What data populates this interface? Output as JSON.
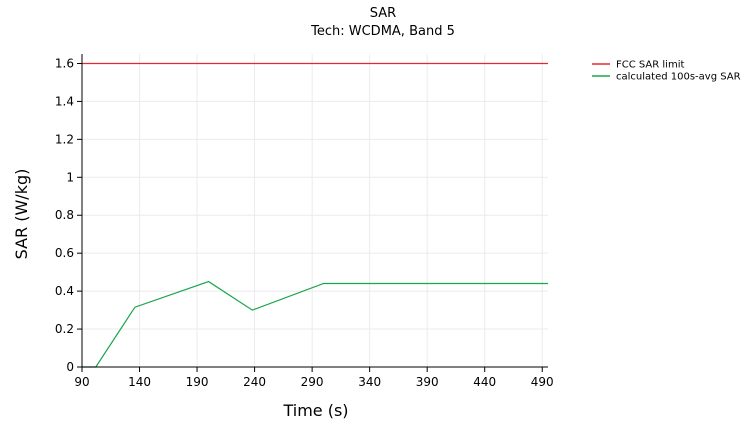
{
  "chart_data": {
    "type": "line",
    "title": "SAR",
    "subtitle": "Tech: WCDMA, Band 5",
    "xlabel": "Time (s)",
    "ylabel": "SAR (W/kg)",
    "xlim": [
      90,
      495
    ],
    "ylim": [
      0,
      1.65
    ],
    "x_ticks": [
      90,
      140,
      190,
      240,
      290,
      340,
      390,
      440,
      490
    ],
    "x_tick_labels": [
      "90",
      "140",
      "190",
      "240",
      "290",
      "340",
      "390",
      "440",
      "490"
    ],
    "y_ticks": [
      0,
      0.2,
      0.4,
      0.6,
      0.8,
      1,
      1.2,
      1.4,
      1.6
    ],
    "y_tick_labels": [
      "0",
      "0.2",
      "0.4",
      "0.6",
      "0.8",
      "1",
      "1.2",
      "1.4",
      "1.6"
    ],
    "grid": true,
    "legend_position": "top-right",
    "series": [
      {
        "name": "FCC SAR limit",
        "color": "#e8262b",
        "points": [
          [
            90,
            1.6
          ],
          [
            495,
            1.6
          ]
        ]
      },
      {
        "name": "calculated 100s-avg SAR",
        "color": "#1aa64b",
        "points": [
          [
            90,
            0
          ],
          [
            102,
            0
          ],
          [
            136,
            0.315
          ],
          [
            200,
            0.45
          ],
          [
            238,
            0.3
          ],
          [
            300,
            0.44
          ],
          [
            495,
            0.44
          ]
        ]
      }
    ]
  }
}
